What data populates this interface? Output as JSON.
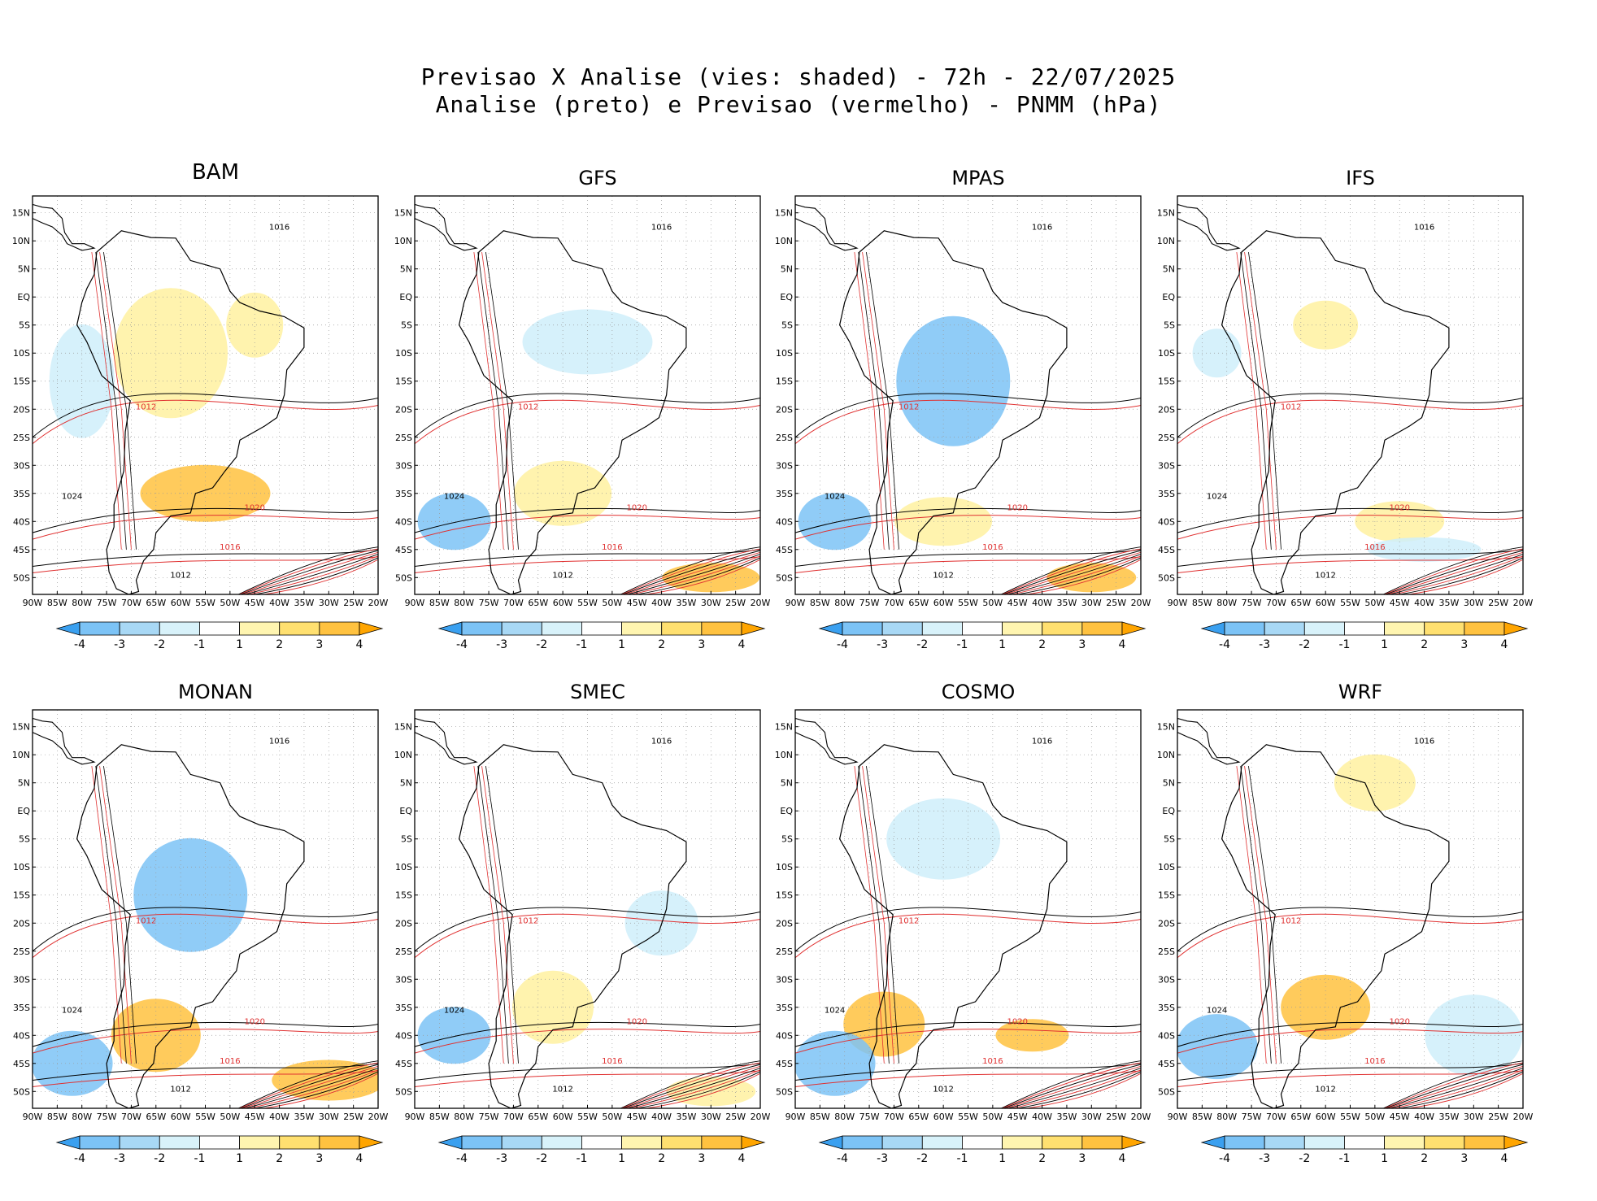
{
  "header": {
    "title_line1": "Previsao X Analise (vies: shaded) - 72h - 22/07/2025",
    "title_line2": "Analise (preto) e Previsao (vermelho) - PNMM (hPa)"
  },
  "axes": {
    "lat_ticks": [
      "15N",
      "10N",
      "5N",
      "EQ",
      "5S",
      "10S",
      "15S",
      "20S",
      "25S",
      "30S",
      "35S",
      "40S",
      "45S",
      "50S"
    ],
    "lon_ticks": [
      "90W",
      "85W",
      "80W",
      "75W",
      "70W",
      "65W",
      "60W",
      "55W",
      "50W",
      "45W",
      "40W",
      "35W",
      "30W",
      "25W",
      "20W"
    ]
  },
  "colorbar": {
    "labels": [
      "-4",
      "-3",
      "-2",
      "-1",
      "1",
      "2",
      "3",
      "4"
    ],
    "colors": [
      "#3aa0f0",
      "#7cc3f6",
      "#a8d8f5",
      "#d8f2fa",
      "#ffffff",
      "#fff5b0",
      "#ffe070",
      "#ffc240",
      "#ffa500"
    ]
  },
  "colors": {
    "warm_bias": "#ffc240",
    "warm_bias_light": "#fff1a0",
    "cold_bias": "#7cc3f6",
    "cold_bias_light": "#cfeefa",
    "analysis_line": "#000000",
    "forecast_line": "#e03030",
    "land_outline": "#000000"
  },
  "panels": [
    {
      "name": "BAM",
      "labels": [
        {
          "t": "1016",
          "c": "black"
        },
        {
          "t": "1012",
          "c": "red"
        },
        {
          "t": "1020",
          "c": "red"
        },
        {
          "t": "1024",
          "c": "black"
        },
        {
          "t": "1016",
          "c": "red"
        },
        {
          "t": "1012",
          "c": "black"
        }
      ]
    },
    {
      "name": "GFS",
      "labels": [
        {
          "t": "1016",
          "c": "black"
        },
        {
          "t": "1012",
          "c": "red"
        },
        {
          "t": "1020",
          "c": "red"
        },
        {
          "t": "1024",
          "c": "black"
        },
        {
          "t": "1016",
          "c": "red"
        },
        {
          "t": "1012",
          "c": "black"
        }
      ]
    },
    {
      "name": "MPAS",
      "labels": [
        {
          "t": "1016",
          "c": "black"
        },
        {
          "t": "1012",
          "c": "red"
        },
        {
          "t": "1020",
          "c": "red"
        },
        {
          "t": "1024",
          "c": "black"
        },
        {
          "t": "1016",
          "c": "red"
        },
        {
          "t": "1012",
          "c": "black"
        }
      ]
    },
    {
      "name": "IFS",
      "labels": [
        {
          "t": "1016",
          "c": "black"
        },
        {
          "t": "1012",
          "c": "red"
        },
        {
          "t": "1020",
          "c": "red"
        },
        {
          "t": "1024",
          "c": "black"
        },
        {
          "t": "1016",
          "c": "red"
        },
        {
          "t": "1012",
          "c": "black"
        }
      ]
    },
    {
      "name": "MONAN",
      "labels": [
        {
          "t": "1016",
          "c": "black"
        },
        {
          "t": "1012",
          "c": "red"
        },
        {
          "t": "1020",
          "c": "red"
        },
        {
          "t": "1024",
          "c": "black"
        },
        {
          "t": "1016",
          "c": "red"
        },
        {
          "t": "1012",
          "c": "black"
        }
      ]
    },
    {
      "name": "SMEC",
      "labels": [
        {
          "t": "1016",
          "c": "black"
        },
        {
          "t": "1012",
          "c": "red"
        },
        {
          "t": "1020",
          "c": "red"
        },
        {
          "t": "1024",
          "c": "black"
        },
        {
          "t": "1016",
          "c": "red"
        },
        {
          "t": "1012",
          "c": "black"
        }
      ]
    },
    {
      "name": "COSMO",
      "labels": [
        {
          "t": "1016",
          "c": "black"
        },
        {
          "t": "1012",
          "c": "red"
        },
        {
          "t": "1020",
          "c": "red"
        },
        {
          "t": "1024",
          "c": "black"
        },
        {
          "t": "1016",
          "c": "red"
        },
        {
          "t": "1012",
          "c": "black"
        }
      ]
    },
    {
      "name": "WRF",
      "labels": [
        {
          "t": "1016",
          "c": "black"
        },
        {
          "t": "1012",
          "c": "red"
        },
        {
          "t": "1020",
          "c": "red"
        },
        {
          "t": "1024",
          "c": "black"
        },
        {
          "t": "1016",
          "c": "red"
        },
        {
          "t": "1012",
          "c": "black"
        }
      ]
    }
  ]
}
